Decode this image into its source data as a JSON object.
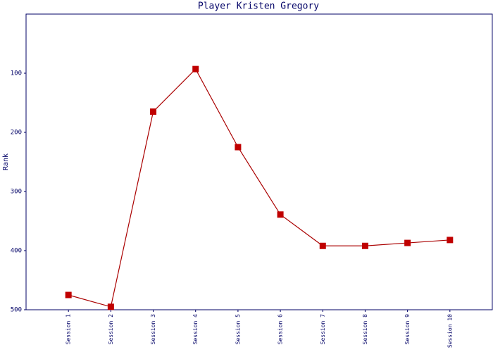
{
  "chart_data": {
    "type": "line",
    "title": "Player Kristen Gregory",
    "ylabel": "Rank",
    "categories": [
      "Session 1",
      "Session 2",
      "Session 3",
      "Session 4",
      "Session 5",
      "Session 6",
      "Session 7",
      "Session 8",
      "Session 9",
      "Session 10"
    ],
    "values": [
      475,
      495,
      165,
      93,
      225,
      339,
      392,
      392,
      387,
      382
    ],
    "color": "#aa0000",
    "marker_color": "#c00000",
    "axis_color": "#000066",
    "ylim": [
      0,
      500
    ],
    "y_inverted": true,
    "yticks": [
      100,
      200,
      300,
      400,
      500
    ]
  }
}
